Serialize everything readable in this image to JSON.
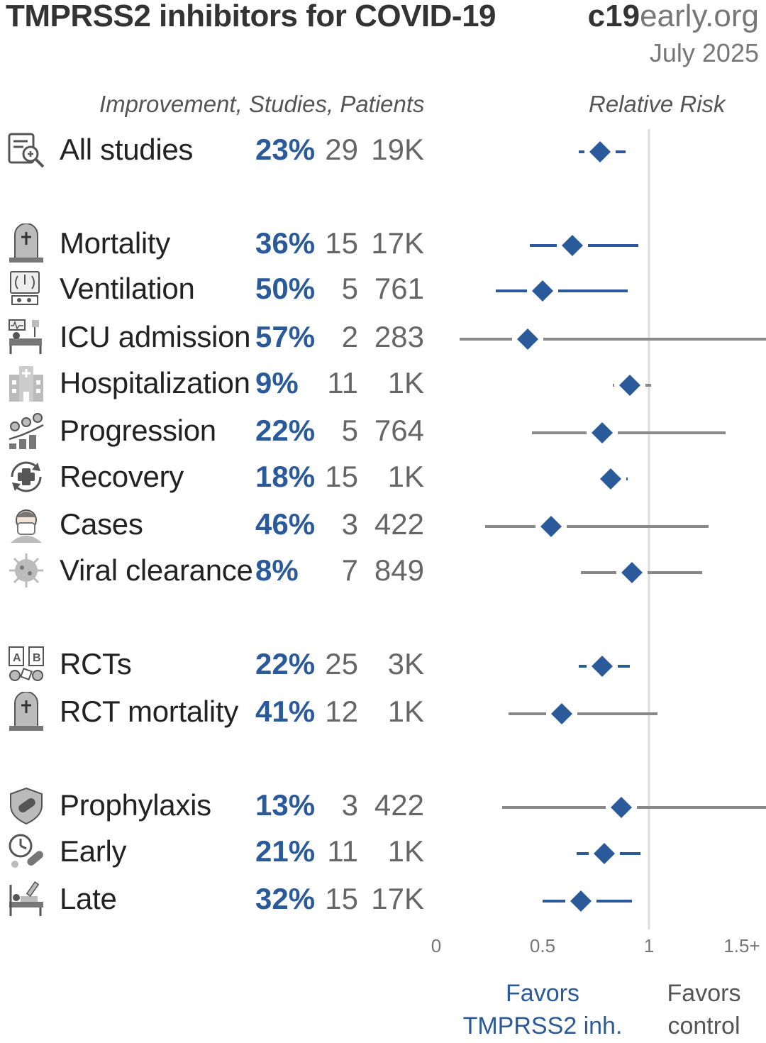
{
  "header": {
    "title": "TMPRSS2 inhibitors for COVID-19",
    "brand_bold": "c19",
    "brand_rest": "early.org",
    "date": "July 2025",
    "columns_label": "Improvement, Studies, Patients",
    "rr_label": "Relative Risk"
  },
  "rows": [
    {
      "label": "All studies",
      "improvement": "23%",
      "studies": "29",
      "patients": "19K",
      "icon": "study-search-icon"
    },
    {
      "label": "Mortality",
      "improvement": "36%",
      "studies": "15",
      "patients": "17K",
      "icon": "tombstone-icon"
    },
    {
      "label": "Ventilation",
      "improvement": "50%",
      "studies": "5",
      "patients": "761",
      "icon": "ventilator-icon"
    },
    {
      "label": "ICU admission",
      "improvement": "57%",
      "studies": "2",
      "patients": "283",
      "icon": "icu-bed-icon"
    },
    {
      "label": "Hospitalization",
      "improvement": "9%",
      "studies": "11",
      "patients": "1K",
      "icon": "hospital-icon"
    },
    {
      "label": "Progression",
      "improvement": "22%",
      "studies": "5",
      "patients": "764",
      "icon": "progression-icon"
    },
    {
      "label": "Recovery",
      "improvement": "18%",
      "studies": "15",
      "patients": "1K",
      "icon": "recovery-icon"
    },
    {
      "label": "Cases",
      "improvement": "46%",
      "studies": "3",
      "patients": "422",
      "icon": "sneezing-person-icon"
    },
    {
      "label": "Viral clearance",
      "improvement": "8%",
      "studies": "7",
      "patients": "849",
      "icon": "virus-icon"
    },
    {
      "label": "RCTs",
      "improvement": "22%",
      "studies": "25",
      "patients": "3K",
      "icon": "rct-ab-icon"
    },
    {
      "label": "RCT mortality",
      "improvement": "41%",
      "studies": "12",
      "patients": "1K",
      "icon": "tombstone-icon"
    },
    {
      "label": "Prophylaxis",
      "improvement": "13%",
      "studies": "3",
      "patients": "422",
      "icon": "shield-pill-icon"
    },
    {
      "label": "Early",
      "improvement": "21%",
      "studies": "11",
      "patients": "1K",
      "icon": "clock-pill-icon"
    },
    {
      "label": "Late",
      "improvement": "32%",
      "studies": "15",
      "patients": "17K",
      "icon": "patient-bed-syringe-icon"
    }
  ],
  "footer": {
    "favors_left_1": "Favors",
    "favors_left_2": "TMPRSS2 inh.",
    "favors_right_1": "Favors",
    "favors_right_2": "control"
  },
  "colors": {
    "significant": "#2a5a9a",
    "nonsignificant": "#888888",
    "reference_line": "#dddddd",
    "text_dark": "#222222",
    "text_muted": "#666666"
  },
  "chart_data": {
    "type": "forest",
    "x_axis": {
      "ticks": [
        0,
        0.5,
        1,
        1.5
      ],
      "tick_labels": [
        "0",
        "0.5",
        "1",
        "1.5+"
      ],
      "range": [
        0,
        1.5
      ]
    },
    "reference_value": 1,
    "series": [
      {
        "outcome": "All studies",
        "rr": 0.77,
        "ci": [
          0.67,
          0.89
        ],
        "significant": true
      },
      {
        "outcome": "Mortality",
        "rr": 0.64,
        "ci": [
          0.44,
          0.95
        ],
        "significant": true
      },
      {
        "outcome": "Ventilation",
        "rr": 0.5,
        "ci": [
          0.28,
          0.9
        ],
        "significant": true
      },
      {
        "outcome": "ICU admission",
        "rr": 0.43,
        "ci": [
          0.11,
          1.67
        ],
        "significant": false
      },
      {
        "outcome": "Hospitalization",
        "rr": 0.91,
        "ci": [
          0.83,
          1.01
        ],
        "significant": false
      },
      {
        "outcome": "Progression",
        "rr": 0.78,
        "ci": [
          0.45,
          1.36
        ],
        "significant": false
      },
      {
        "outcome": "Recovery",
        "rr": 0.82,
        "ci": [
          0.75,
          0.9
        ],
        "significant": true
      },
      {
        "outcome": "Cases",
        "rr": 0.54,
        "ci": [
          0.23,
          1.28
        ],
        "significant": false
      },
      {
        "outcome": "Viral clearance",
        "rr": 0.92,
        "ci": [
          0.68,
          1.25
        ],
        "significant": false
      },
      {
        "outcome": "RCTs",
        "rr": 0.78,
        "ci": [
          0.67,
          0.91
        ],
        "significant": true
      },
      {
        "outcome": "RCT mortality",
        "rr": 0.59,
        "ci": [
          0.34,
          1.04
        ],
        "significant": false
      },
      {
        "outcome": "Prophylaxis",
        "rr": 0.87,
        "ci": [
          0.31,
          2.41
        ],
        "significant": false
      },
      {
        "outcome": "Early",
        "rr": 0.79,
        "ci": [
          0.66,
          0.96
        ],
        "significant": true
      },
      {
        "outcome": "Late",
        "rr": 0.68,
        "ci": [
          0.5,
          0.92
        ],
        "significant": true
      }
    ]
  }
}
